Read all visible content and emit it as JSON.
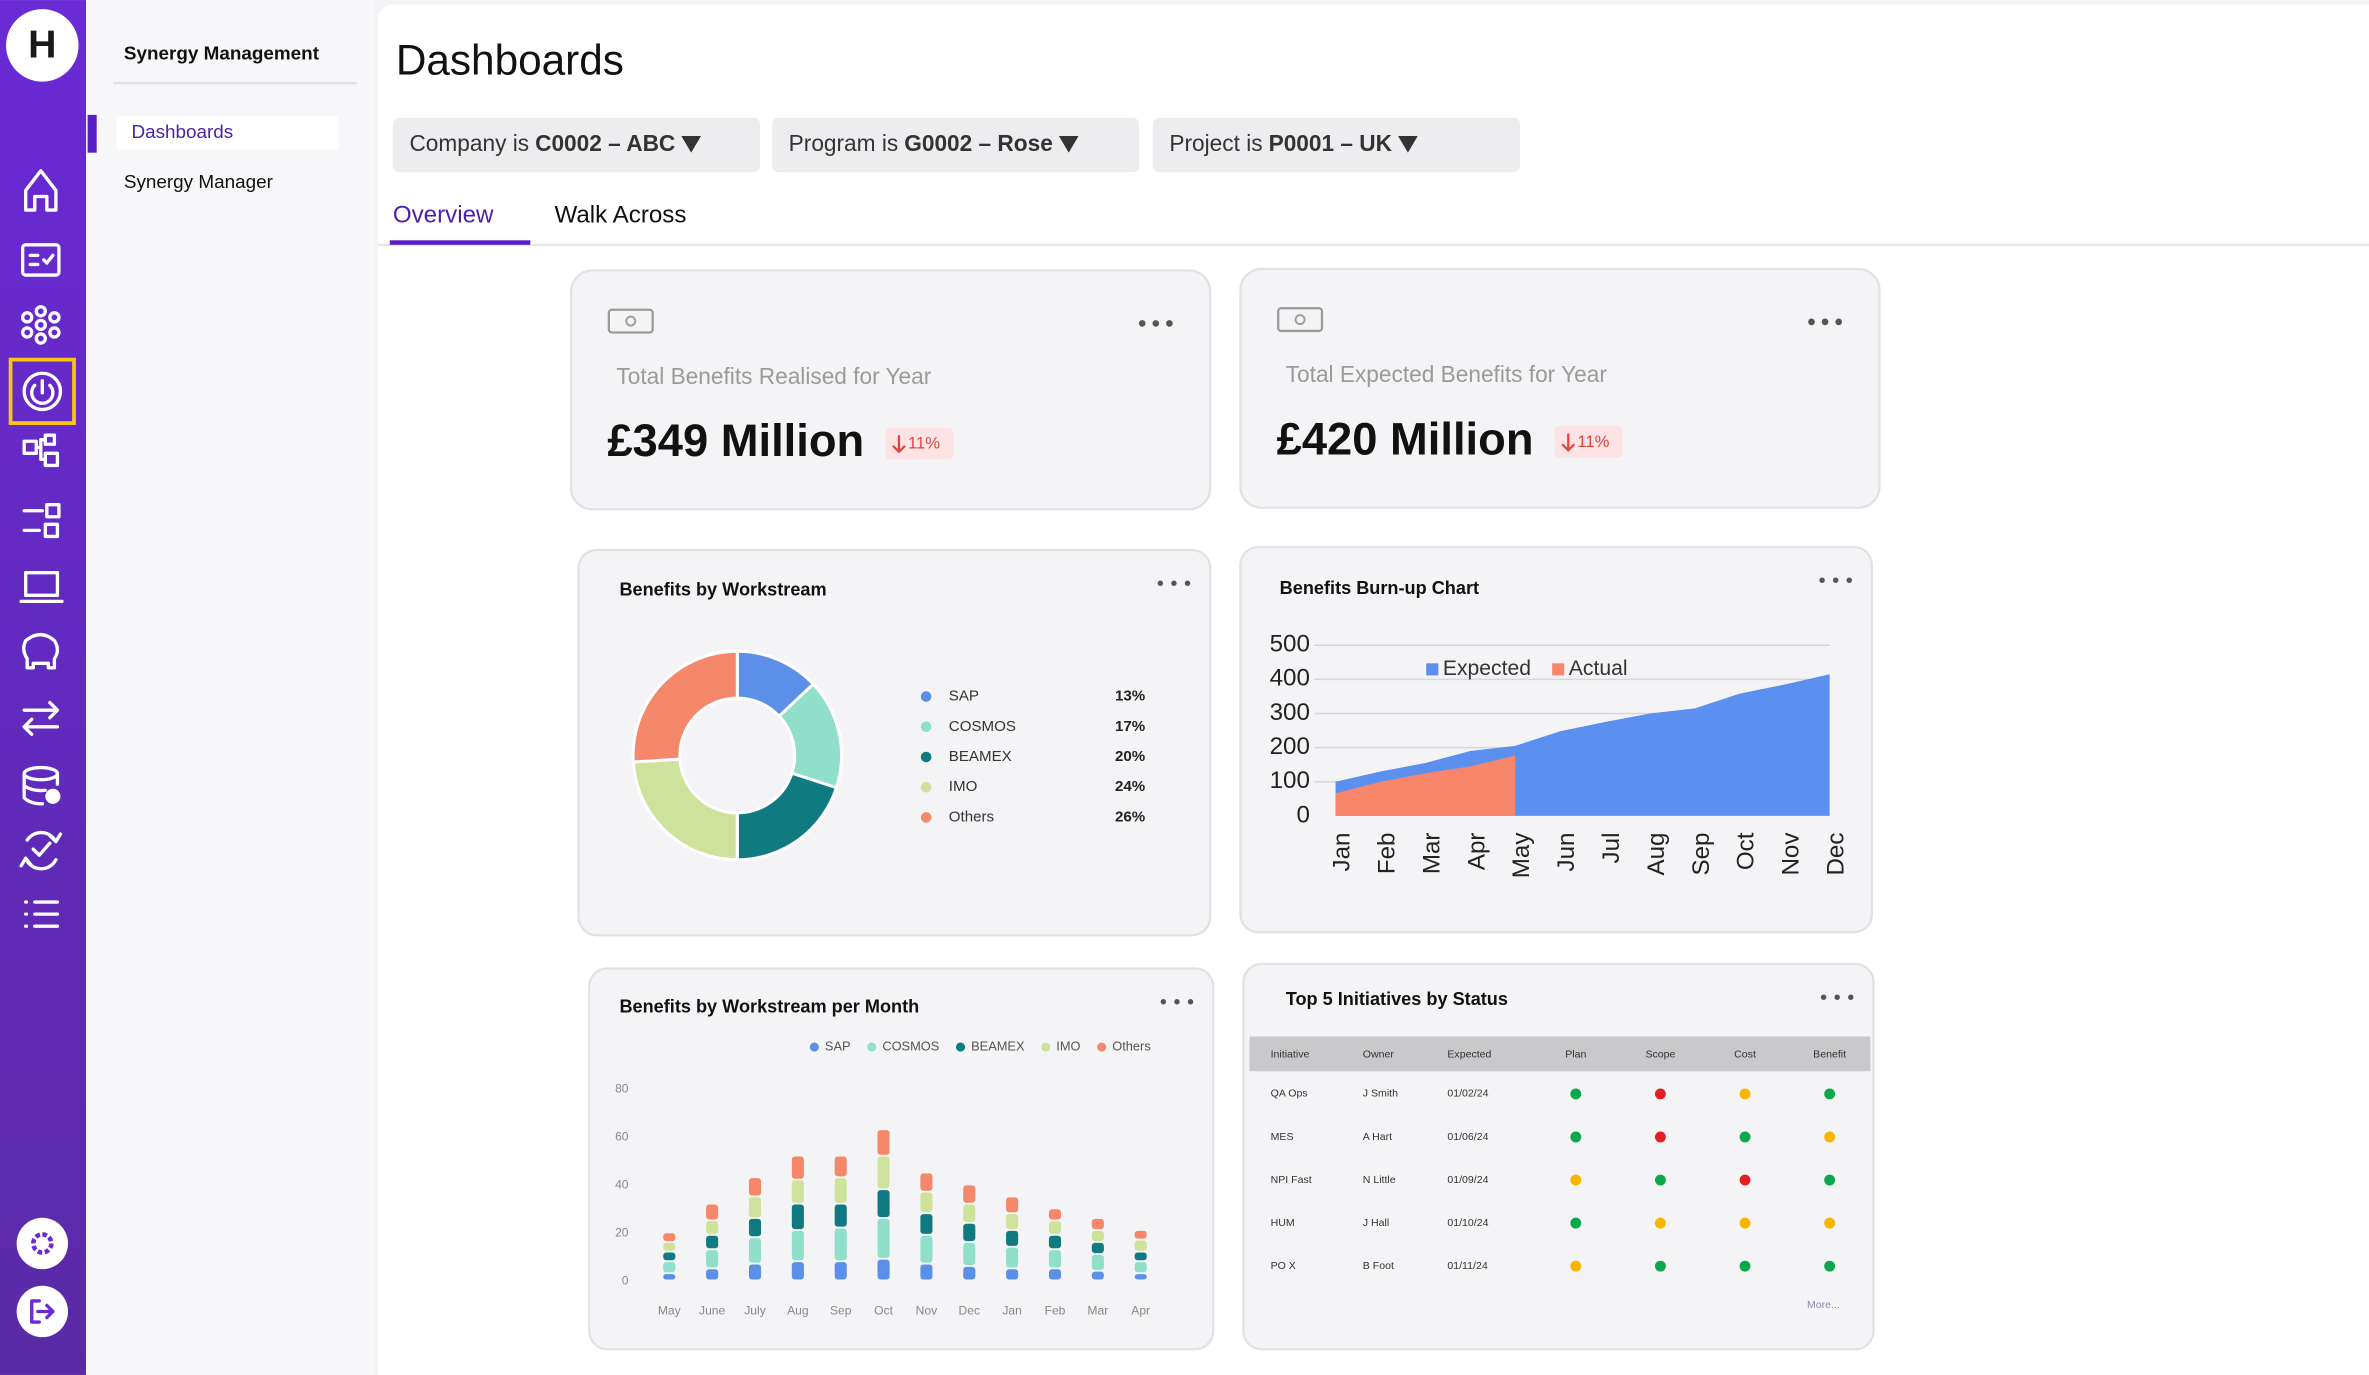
{
  "logo": "H",
  "nav": {
    "title": "Synergy Management",
    "items": [
      "Dashboards",
      "Synergy Manager"
    ]
  },
  "header": {
    "title": "Dashboards"
  },
  "filters": [
    {
      "label": "Company is",
      "value": "C0002 – ABC"
    },
    {
      "label": "Program is",
      "value": "G0002 – Rose"
    },
    {
      "label": "Project is",
      "value": "P0001 – UK"
    }
  ],
  "tabs": [
    "Overview",
    "Walk Across"
  ],
  "kpis": [
    {
      "title": "Total Benefits Realised for Year",
      "value": "£349 Million",
      "change": "11%"
    },
    {
      "title": "Total Expected Benefits for Year",
      "value": "£420 Million",
      "change": "11%"
    }
  ],
  "chart_data": [
    {
      "type": "pie",
      "title": "Benefits by Workstream",
      "categories": [
        "SAP",
        "COSMOS",
        "BEAMEX",
        "IMO",
        "Others"
      ],
      "values": [
        13,
        17,
        20,
        24,
        26
      ],
      "value_labels": [
        "13%",
        "17%",
        "20%",
        "24%",
        "26%"
      ],
      "colors": [
        "#5b8fe8",
        "#8fdfca",
        "#0f7b80",
        "#cfe29b",
        "#f5876b"
      ]
    },
    {
      "type": "area",
      "title": "Benefits Burn-up Chart",
      "categories": [
        "Jan",
        "Feb",
        "Mar",
        "Apr",
        "May",
        "Jun",
        "Jul",
        "Aug",
        "Sep",
        "Oct",
        "Nov",
        "Dec"
      ],
      "series": [
        {
          "name": "Expected",
          "color": "#5b8ff0",
          "values": [
            100,
            130,
            155,
            190,
            205,
            248,
            275,
            300,
            315,
            358,
            385,
            415
          ]
        },
        {
          "name": "Actual",
          "color": "#f7866b",
          "values": [
            66,
            100,
            125,
            145,
            177,
            null,
            null,
            null,
            null,
            null,
            null,
            null
          ]
        }
      ],
      "ylim": [
        0,
        500
      ],
      "yticks": [
        0,
        100,
        200,
        300,
        400,
        500
      ],
      "grid": true
    },
    {
      "type": "bar",
      "stacked": true,
      "title": "Benefits by Workstream per Month",
      "categories": [
        "May",
        "June",
        "July",
        "Aug",
        "Sep",
        "Oct",
        "Nov",
        "Dec",
        "Jan",
        "Feb",
        "Mar",
        "Apr"
      ],
      "series": [
        {
          "name": "SAP",
          "color": "#5b8fe8",
          "values": [
            3,
            5,
            7,
            8,
            8,
            9,
            7,
            6,
            5,
            5,
            4,
            3
          ]
        },
        {
          "name": "COSMOS",
          "color": "#8fdfca",
          "values": [
            5,
            8,
            11,
            13,
            14,
            17,
            12,
            10,
            9,
            8,
            7,
            5
          ]
        },
        {
          "name": "BEAMEX",
          "color": "#0f7b80",
          "values": [
            4,
            6,
            8,
            11,
            10,
            12,
            9,
            8,
            7,
            6,
            5,
            4
          ]
        },
        {
          "name": "IMO",
          "color": "#cfe29b",
          "values": [
            4,
            6,
            9,
            10,
            11,
            14,
            9,
            8,
            7,
            6,
            5,
            5
          ]
        },
        {
          "name": "Others",
          "color": "#f5876b",
          "values": [
            4,
            7,
            8,
            10,
            9,
            11,
            8,
            8,
            7,
            5,
            5,
            4
          ]
        }
      ],
      "ylim": [
        0,
        80
      ],
      "yticks": [
        0,
        20,
        40,
        60,
        80
      ],
      "grid": false
    }
  ],
  "table": {
    "title": "Top 5 Initiatives by Status",
    "columns": [
      "Initiative",
      "Owner",
      "Expected",
      "Plan",
      "Scope",
      "Cost",
      "Benefit"
    ],
    "rows": [
      {
        "cells": [
          "QA Ops",
          "J Smith",
          "01/02/24"
        ],
        "status": [
          "green",
          "red",
          "amber",
          "green"
        ]
      },
      {
        "cells": [
          "MES",
          "A Hart",
          "01/06/24"
        ],
        "status": [
          "green",
          "red",
          "green",
          "amber"
        ]
      },
      {
        "cells": [
          "NPI Fast",
          "N Little",
          "01/09/24"
        ],
        "status": [
          "amber",
          "green",
          "red",
          "green"
        ]
      },
      {
        "cells": [
          "HUM",
          "J Hall",
          "01/10/24"
        ],
        "status": [
          "green",
          "amber",
          "amber",
          "amber"
        ]
      },
      {
        "cells": [
          "PO X",
          "B Foot",
          "01/11/24"
        ],
        "status": [
          "amber",
          "green",
          "green",
          "green"
        ]
      }
    ],
    "more": "More..."
  }
}
